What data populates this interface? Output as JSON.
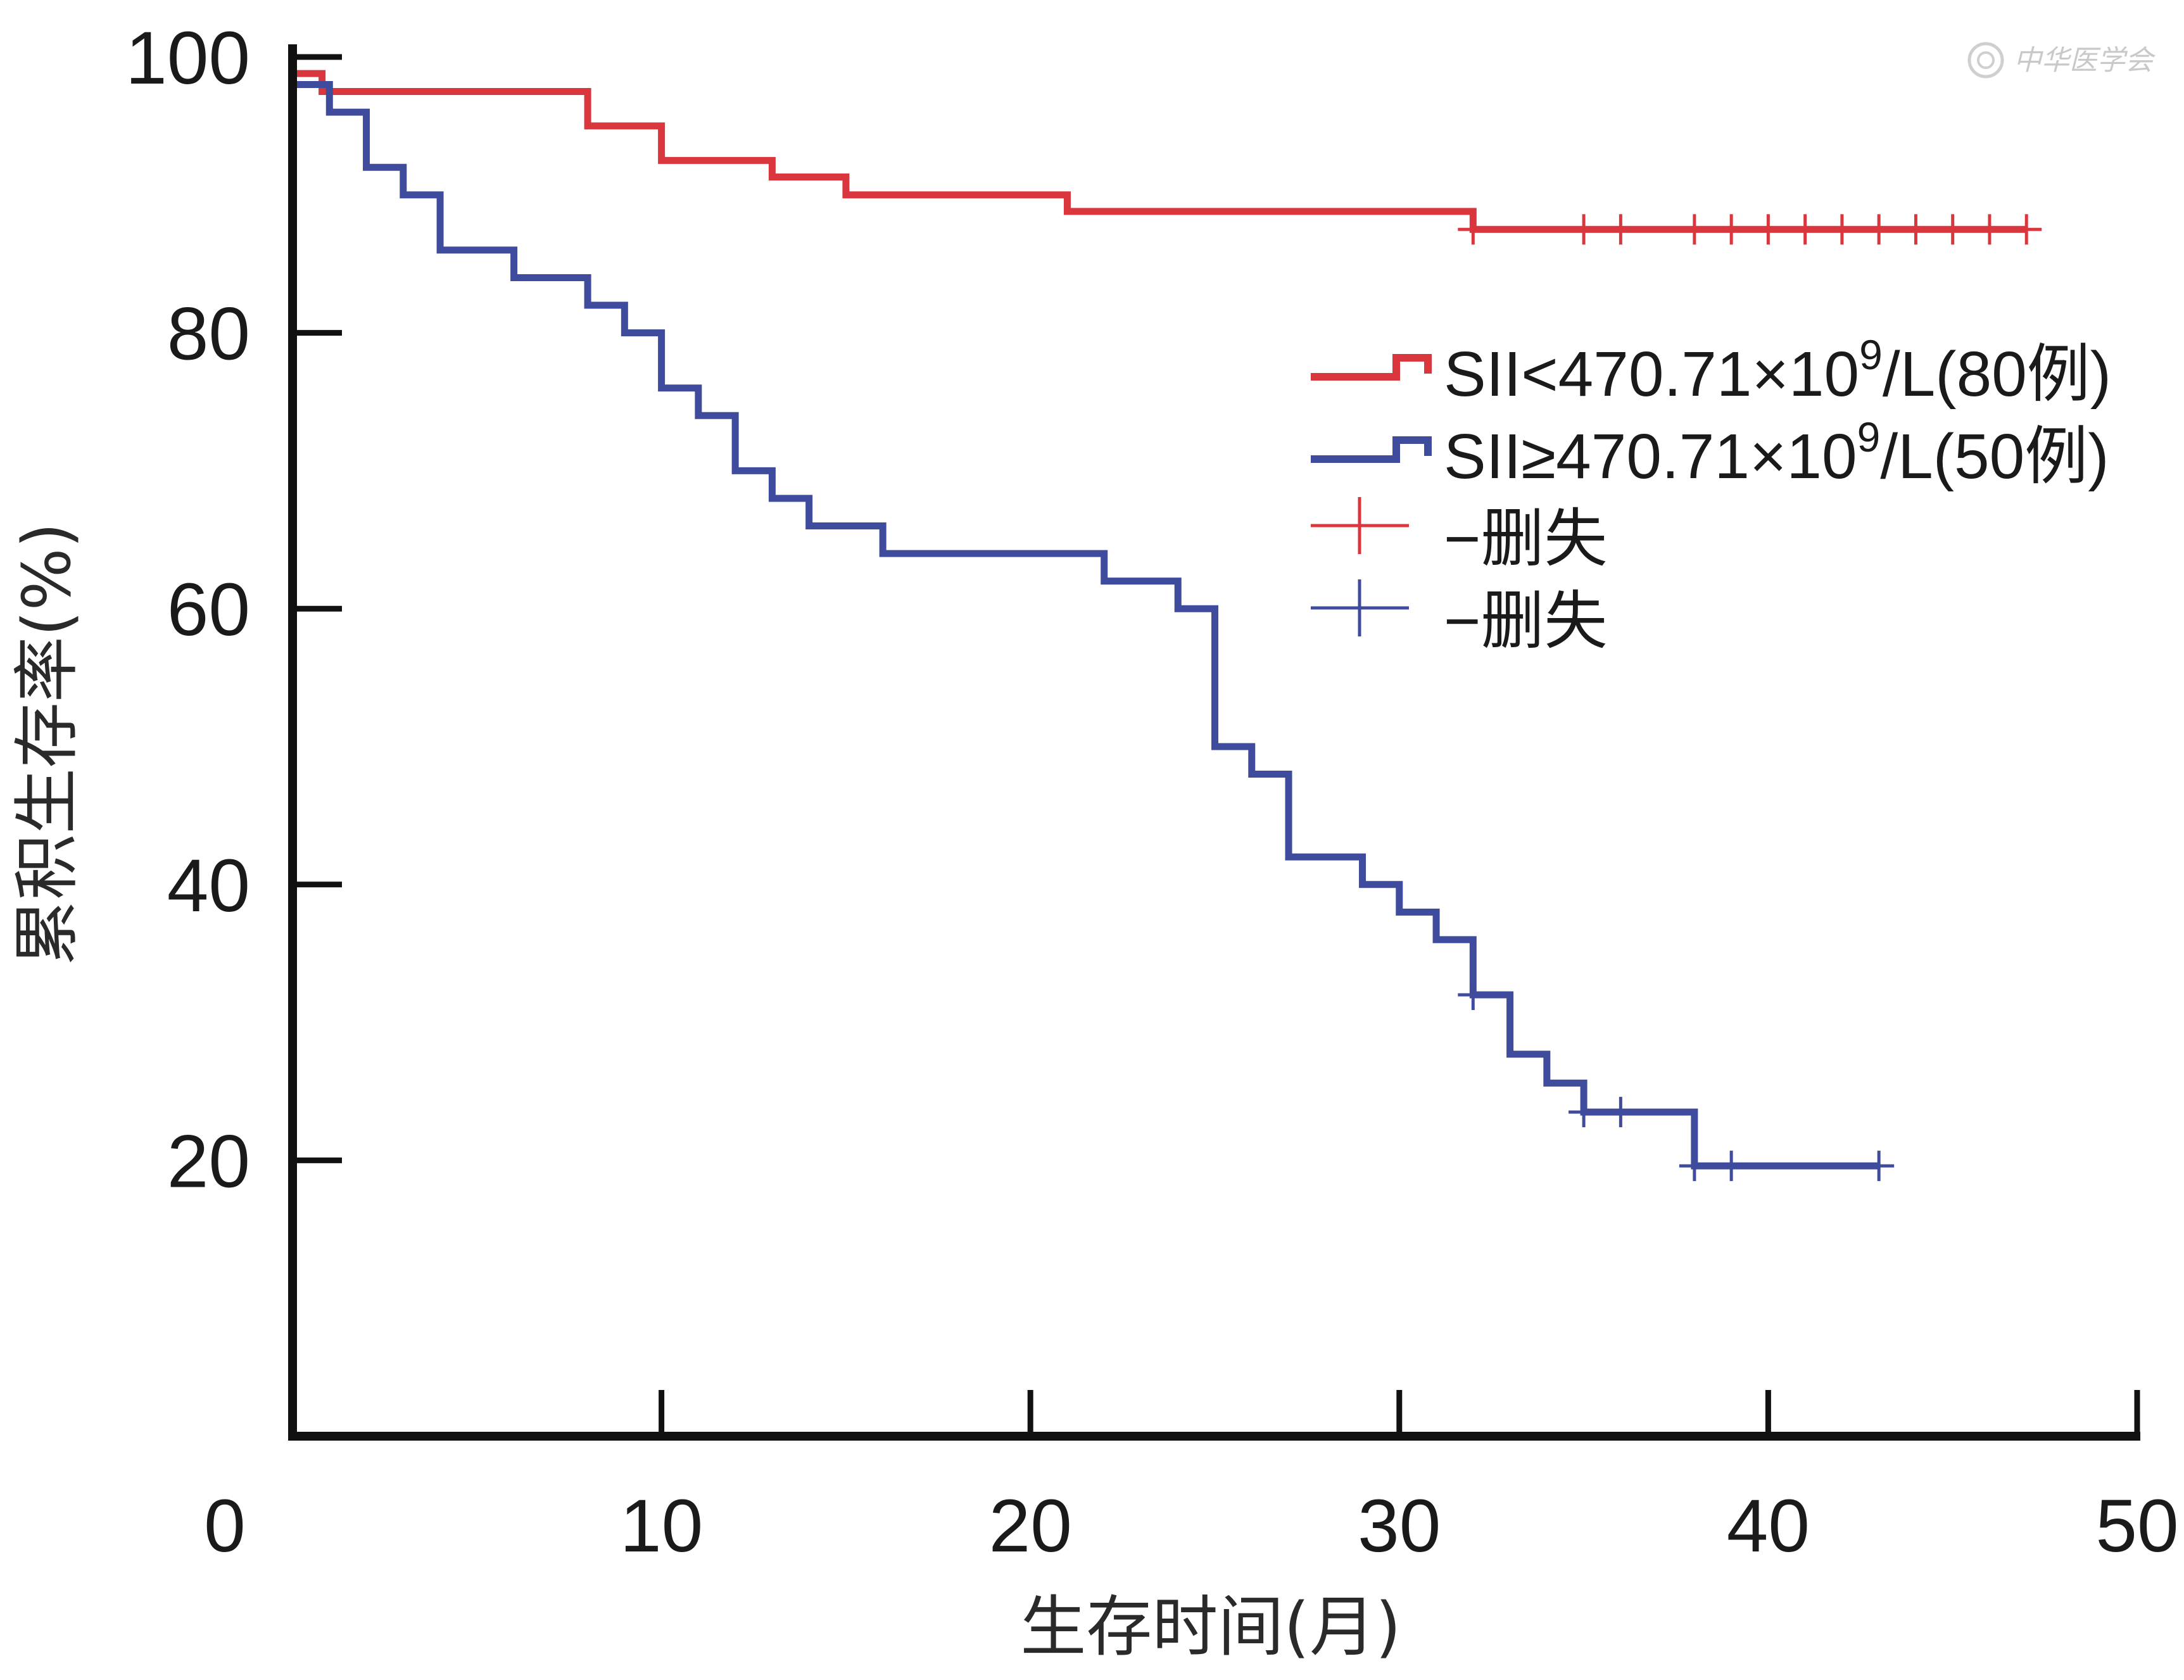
{
  "chart_data": {
    "type": "line",
    "subtype": "kaplan-meier-step",
    "xlabel": "生存时间(月)",
    "ylabel": "累积生存率(%)",
    "xlim": [
      0,
      50
    ],
    "ylim": [
      0,
      100
    ],
    "xticks": [
      0,
      10,
      20,
      30,
      40,
      50
    ],
    "yticks": [
      20,
      40,
      60,
      80,
      100
    ],
    "grid": false,
    "legend_position": "right",
    "series": [
      {
        "name": "SII<470.71×10⁹/L(80例)",
        "color": "#d9363e",
        "steps": [
          [
            0,
            98.8
          ],
          [
            0.8,
            97.5
          ],
          [
            8,
            95.0
          ],
          [
            10,
            92.5
          ],
          [
            13,
            91.3
          ],
          [
            15,
            90.0
          ],
          [
            21,
            88.8
          ],
          [
            32,
            87.5
          ],
          [
            47,
            87.5
          ]
        ],
        "censored": [
          [
            32,
            87.5
          ],
          [
            35,
            87.5
          ],
          [
            36,
            87.5
          ],
          [
            38,
            87.5
          ],
          [
            39,
            87.5
          ],
          [
            40,
            87.5
          ],
          [
            41,
            87.5
          ],
          [
            42,
            87.5
          ],
          [
            43,
            87.5
          ],
          [
            44,
            87.5
          ],
          [
            45,
            87.5
          ],
          [
            46,
            87.5
          ],
          [
            47,
            87.5
          ]
        ]
      },
      {
        "name": "SII≥470.71×10⁹/L(50例)",
        "color": "#3f4b9c",
        "steps": [
          [
            0,
            98.0
          ],
          [
            1,
            96.0
          ],
          [
            2,
            92.0
          ],
          [
            3,
            90.0
          ],
          [
            4,
            86.0
          ],
          [
            6,
            84.0
          ],
          [
            8,
            82.0
          ],
          [
            9,
            80.0
          ],
          [
            10,
            76.0
          ],
          [
            11,
            74.0
          ],
          [
            12,
            70.0
          ],
          [
            13,
            68.0
          ],
          [
            14,
            66.0
          ],
          [
            16,
            64.0
          ],
          [
            22,
            62.0
          ],
          [
            24,
            60.0
          ],
          [
            25,
            50.0
          ],
          [
            26,
            48.0
          ],
          [
            27,
            42.0
          ],
          [
            29,
            40.0
          ],
          [
            30,
            38.0
          ],
          [
            31,
            36.0
          ],
          [
            32,
            32.0
          ],
          [
            33,
            27.7
          ],
          [
            34,
            25.6
          ],
          [
            35,
            23.5
          ],
          [
            38,
            19.6
          ],
          [
            43,
            19.6
          ]
        ],
        "censored": [
          [
            32,
            32.0
          ],
          [
            35,
            23.5
          ],
          [
            36,
            23.5
          ],
          [
            38,
            19.6
          ],
          [
            39,
            19.6
          ],
          [
            43,
            19.6
          ]
        ]
      }
    ],
    "legend": {
      "entries": [
        {
          "label_main": "SII<470.71×10",
          "label_sup": "9",
          "label_tail": "/L(80例)",
          "color": "#d9363e",
          "kind": "step"
        },
        {
          "label_main": "SII≥470.71×10",
          "label_sup": "9",
          "label_tail": "/L(50例)",
          "color": "#3f4b9c",
          "kind": "step"
        },
        {
          "label_main": "−删失",
          "label_sup": "",
          "label_tail": "",
          "color": "#d9363e",
          "kind": "censor"
        },
        {
          "label_main": "−删失",
          "label_sup": "",
          "label_tail": "",
          "color": "#3f4b9c",
          "kind": "censor"
        }
      ]
    }
  },
  "watermark": {
    "text": "中华医学会",
    "icon": "society-seal-icon"
  }
}
